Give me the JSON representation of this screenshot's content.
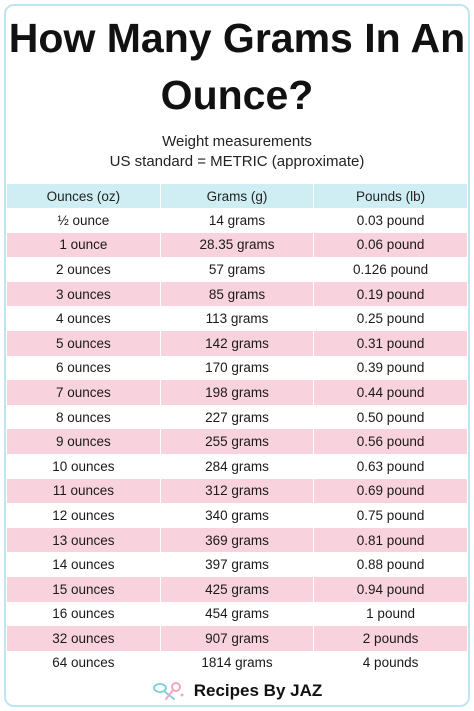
{
  "title_line1": "How Many Grams In An",
  "title_line2": "Ounce?",
  "subtitle_line1": "Weight measurements",
  "subtitle_line2": "US standard = METRIC (approximate)",
  "table": {
    "headers": [
      "Ounces (oz)",
      "Grams (g)",
      "Pounds (lb)"
    ],
    "rows": [
      [
        "½ ounce",
        "14 grams",
        "0.03 pound"
      ],
      [
        "1 ounce",
        "28.35 grams",
        "0.06 pound"
      ],
      [
        "2 ounces",
        "57 grams",
        "0.126 pound"
      ],
      [
        "3 ounces",
        "85 grams",
        "0.19 pound"
      ],
      [
        "4 ounces",
        "113 grams",
        "0.25 pound"
      ],
      [
        "5 ounces",
        "142 grams",
        "0.31 pound"
      ],
      [
        "6 ounces",
        "170 grams",
        "0.39 pound"
      ],
      [
        "7 ounces",
        "198 grams",
        "0.44 pound"
      ],
      [
        "8 ounces",
        "227 grams",
        "0.50 pound"
      ],
      [
        "9 ounces",
        "255 grams",
        "0.56 pound"
      ],
      [
        "10 ounces",
        "284 grams",
        "0.63 pound"
      ],
      [
        "11 ounces",
        "312 grams",
        "0.69 pound"
      ],
      [
        "12 ounces",
        "340 grams",
        "0.75 pound"
      ],
      [
        "13 ounces",
        "369 grams",
        "0.81 pound"
      ],
      [
        "14 ounces",
        "397 grams",
        "0.88 pound"
      ],
      [
        "15 ounces",
        "425 grams",
        "0.94 pound"
      ],
      [
        "16 ounces",
        "454 grams",
        "1 pound"
      ],
      [
        "32 ounces",
        "907 grams",
        "2 pounds"
      ],
      [
        "64 ounces",
        "1814 grams",
        "4 pounds"
      ]
    ]
  },
  "brand": {
    "text": "Recipes By JAZ",
    "icon": "whisk-spoon-logo-icon"
  },
  "colors": {
    "header_bg": "#cfeef4",
    "stripe_pink": "#f8d3de",
    "border": "#bfe6ee"
  }
}
